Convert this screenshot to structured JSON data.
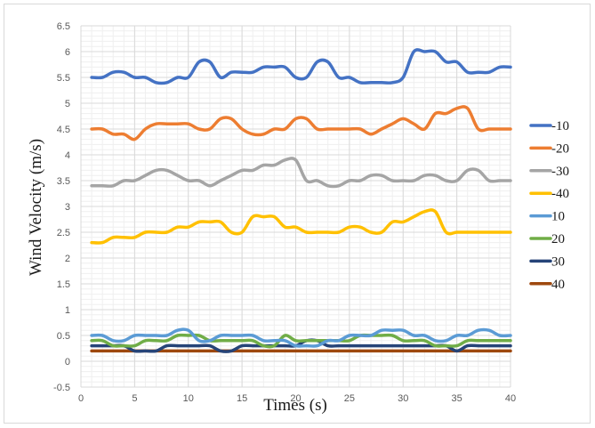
{
  "chart_data": {
    "type": "line",
    "title": "",
    "xlabel": "Times (s)",
    "ylabel": "Wind Velocity (m/s)",
    "xlim": [
      0,
      40
    ],
    "ylim": [
      -0.5,
      6.5
    ],
    "xticks": [
      0,
      5,
      10,
      15,
      20,
      25,
      30,
      35,
      40
    ],
    "yticks": [
      -0.5,
      0,
      0.5,
      1,
      1.5,
      2,
      2.5,
      3,
      3.5,
      4,
      4.5,
      5,
      5.5,
      6,
      6.5
    ],
    "grid": true,
    "legend": "right",
    "x": [
      1,
      2,
      3,
      4,
      5,
      6,
      7,
      8,
      9,
      10,
      11,
      12,
      13,
      14,
      15,
      16,
      17,
      18,
      19,
      20,
      21,
      22,
      23,
      24,
      25,
      26,
      27,
      28,
      29,
      30,
      31,
      32,
      33,
      34,
      35,
      36,
      37,
      38,
      39,
      40
    ],
    "series": [
      {
        "name": "-10",
        "color": "#4472C4",
        "values": [
          5.5,
          5.5,
          5.6,
          5.6,
          5.5,
          5.5,
          5.4,
          5.4,
          5.5,
          5.5,
          5.8,
          5.8,
          5.5,
          5.6,
          5.6,
          5.6,
          5.7,
          5.7,
          5.7,
          5.5,
          5.5,
          5.8,
          5.8,
          5.5,
          5.5,
          5.4,
          5.4,
          5.4,
          5.4,
          5.5,
          6.0,
          6.0,
          6.0,
          5.8,
          5.8,
          5.6,
          5.6,
          5.6,
          5.7,
          5.7
        ]
      },
      {
        "name": "-20",
        "color": "#ED7D31",
        "values": [
          4.5,
          4.5,
          4.4,
          4.4,
          4.3,
          4.5,
          4.6,
          4.6,
          4.6,
          4.6,
          4.5,
          4.5,
          4.7,
          4.7,
          4.5,
          4.4,
          4.4,
          4.5,
          4.5,
          4.7,
          4.7,
          4.5,
          4.5,
          4.5,
          4.5,
          4.5,
          4.4,
          4.5,
          4.6,
          4.7,
          4.6,
          4.5,
          4.8,
          4.8,
          4.9,
          4.9,
          4.5,
          4.5,
          4.5,
          4.5
        ]
      },
      {
        "name": "-30",
        "color": "#A5A5A5",
        "values": [
          3.4,
          3.4,
          3.4,
          3.5,
          3.5,
          3.6,
          3.7,
          3.7,
          3.6,
          3.5,
          3.5,
          3.4,
          3.5,
          3.6,
          3.7,
          3.7,
          3.8,
          3.8,
          3.9,
          3.9,
          3.5,
          3.5,
          3.4,
          3.4,
          3.5,
          3.5,
          3.6,
          3.6,
          3.5,
          3.5,
          3.5,
          3.6,
          3.6,
          3.5,
          3.5,
          3.7,
          3.7,
          3.5,
          3.5,
          3.5
        ]
      },
      {
        "name": "-40",
        "color": "#FFC000",
        "values": [
          2.3,
          2.3,
          2.4,
          2.4,
          2.4,
          2.5,
          2.5,
          2.5,
          2.6,
          2.6,
          2.7,
          2.7,
          2.7,
          2.5,
          2.5,
          2.8,
          2.8,
          2.8,
          2.6,
          2.6,
          2.5,
          2.5,
          2.5,
          2.5,
          2.6,
          2.6,
          2.5,
          2.5,
          2.7,
          2.7,
          2.8,
          2.9,
          2.9,
          2.5,
          2.5,
          2.5,
          2.5,
          2.5,
          2.5,
          2.5
        ]
      },
      {
        "name": "10",
        "color": "#5B9BD5",
        "values": [
          0.5,
          0.5,
          0.4,
          0.4,
          0.5,
          0.5,
          0.5,
          0.5,
          0.6,
          0.6,
          0.4,
          0.4,
          0.5,
          0.5,
          0.5,
          0.5,
          0.4,
          0.4,
          0.4,
          0.3,
          0.3,
          0.3,
          0.4,
          0.4,
          0.5,
          0.5,
          0.5,
          0.6,
          0.6,
          0.6,
          0.5,
          0.5,
          0.4,
          0.4,
          0.5,
          0.5,
          0.6,
          0.6,
          0.5,
          0.5
        ]
      },
      {
        "name": "20",
        "color": "#70AD47",
        "values": [
          0.4,
          0.4,
          0.3,
          0.3,
          0.3,
          0.4,
          0.4,
          0.4,
          0.5,
          0.5,
          0.5,
          0.4,
          0.4,
          0.4,
          0.4,
          0.4,
          0.3,
          0.3,
          0.5,
          0.4,
          0.4,
          0.4,
          0.4,
          0.4,
          0.4,
          0.5,
          0.5,
          0.5,
          0.5,
          0.4,
          0.4,
          0.4,
          0.3,
          0.3,
          0.3,
          0.4,
          0.4,
          0.4,
          0.4,
          0.4
        ]
      },
      {
        "name": "30",
        "color": "#264478",
        "values": [
          0.3,
          0.3,
          0.3,
          0.3,
          0.2,
          0.2,
          0.2,
          0.3,
          0.3,
          0.3,
          0.3,
          0.3,
          0.2,
          0.2,
          0.3,
          0.3,
          0.3,
          0.3,
          0.3,
          0.3,
          0.4,
          0.4,
          0.3,
          0.3,
          0.3,
          0.3,
          0.3,
          0.3,
          0.3,
          0.3,
          0.3,
          0.3,
          0.3,
          0.3,
          0.2,
          0.3,
          0.3,
          0.3,
          0.3,
          0.3
        ]
      },
      {
        "name": "40",
        "color": "#9E480E",
        "values": [
          0.2,
          0.2,
          0.2,
          0.2,
          0.2,
          0.2,
          0.2,
          0.2,
          0.2,
          0.2,
          0.2,
          0.2,
          0.2,
          0.2,
          0.2,
          0.2,
          0.2,
          0.2,
          0.2,
          0.2,
          0.2,
          0.2,
          0.2,
          0.2,
          0.2,
          0.2,
          0.2,
          0.2,
          0.2,
          0.2,
          0.2,
          0.2,
          0.2,
          0.2,
          0.2,
          0.2,
          0.2,
          0.2,
          0.2,
          0.2
        ]
      }
    ]
  }
}
